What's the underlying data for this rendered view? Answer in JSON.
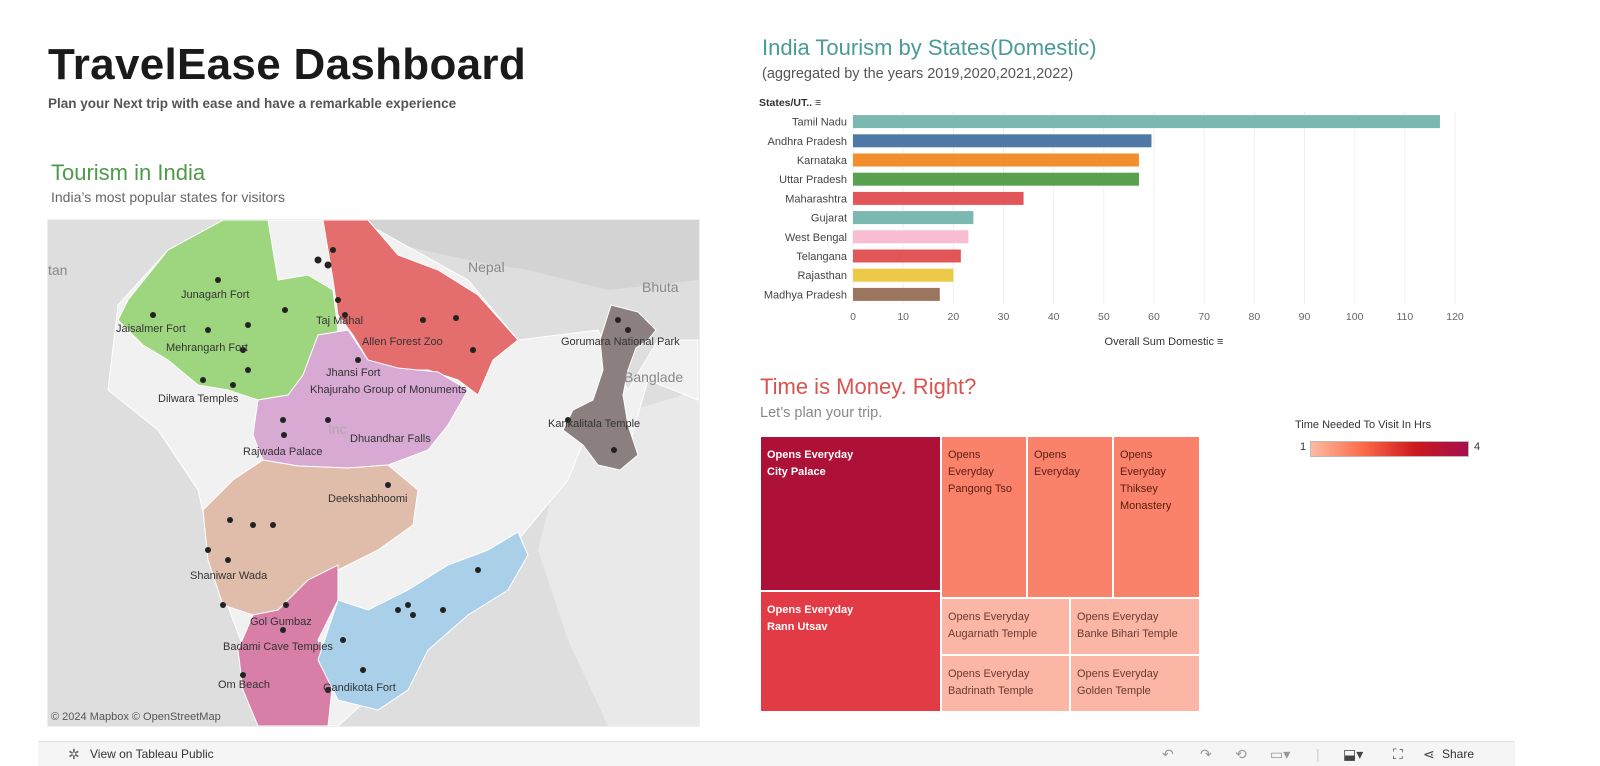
{
  "dashboard": {
    "title": "TravelEase Dashboard",
    "subtitle": "Plan your Next trip with ease and have a remarkable experience"
  },
  "map": {
    "title": "Tourism in India",
    "subtitle": "India’s most popular states for visitors",
    "attribution": "© 2024 Mapbox  © OpenStreetMap",
    "labels": {
      "tan": "tan",
      "nepal": "Nepal",
      "bhutan": "Bhuta",
      "bangladesh": "Banglade",
      "india": "Inc",
      "junagarh": "Junagarh Fort",
      "jaisalmer": "Jaisalmer Fort",
      "mehrangarh": "Mehrangarh Fort",
      "dilwara": "Dilwara Temples",
      "tajmahal": "Taj Mahal",
      "allen": "Allen Forest Zoo",
      "jhansi": "Jhansi Fort",
      "khajuraho": "Khajuraho Group of Monuments",
      "rajwada": "Rajwada Palace",
      "dhuandhar": "Dhuandhar Falls",
      "deekshabhoomi": "Deekshabhoomi",
      "shaniwar": "Shaniwar Wada",
      "golgumbaz": "Gol Gumbaz",
      "badami": "Badami Cave Temples",
      "ombeach": "Om Beach",
      "gandikota": "Gandikota Fort",
      "gorumara": "Gorumara National Park",
      "kankalitala": "Kankalitala Temple"
    },
    "colors": {
      "rajasthan": "#9ed67f",
      "uttar_pradesh": "#e46d6d",
      "madhya_pradesh": "#d7a9d3",
      "maharashtra": "#dfbdaa",
      "karnataka": "#d77fa6",
      "andhra_pradesh": "#a9cfe9",
      "west_bengal": "#8b7f7f",
      "background_land": "#dcdcdc",
      "other_india": "#efefef"
    }
  },
  "bar_chart": {
    "title": "India Tourism by States(Domestic)",
    "subtitle": "(aggregated by the years 2019,2020,2021,2022)"
  },
  "treemap": {
    "title": "Time is Money. Right?",
    "subtitle": "Let’s plan your trip.",
    "legend_title": "Time Needed To Visit In Hrs",
    "legend_min": "1",
    "legend_max": "4",
    "cells": [
      {
        "line1": "Opens Everyday",
        "line2": "City Palace",
        "color": "#ad1137",
        "text_color": "#ffffff"
      },
      {
        "line1": "Opens Everyday",
        "line2": "Rann Utsav",
        "color": "#e33b45",
        "text_color": "#ffffff"
      },
      {
        "line1": "Opens",
        "line2": "Everyday",
        "line3": "Pangong Tso",
        "color": "#fb826a",
        "text_color": "#5a1d10"
      },
      {
        "line1": "Opens",
        "line2": "Everyday",
        "color": "#fb826a",
        "text_color": "#5a1d10"
      },
      {
        "line1": "Opens",
        "line2": "Everyday",
        "line3": "Thiksey",
        "line4": "Monastery",
        "color": "#fb826a",
        "text_color": "#5a1d10"
      },
      {
        "line1": "Opens Everyday",
        "line2": "Augarnath Temple",
        "color": "#fcb6a6",
        "text_color": "#6b3a30"
      },
      {
        "line1": "Opens Everyday",
        "line2": "Banke Bihari Temple",
        "color": "#fcb6a6",
        "text_color": "#6b3a30"
      },
      {
        "line1": "Opens Everyday",
        "line2": "Badrinath Temple",
        "color": "#fcb6a6",
        "text_color": "#6b3a30"
      },
      {
        "line1": "Opens Everyday",
        "line2": "Golden Temple",
        "color": "#fcb6a6",
        "text_color": "#6b3a30"
      }
    ]
  },
  "footer": {
    "view_label": "View on Tableau Public",
    "share_label": "Share"
  },
  "chart_data": [
    {
      "type": "bar",
      "orientation": "horizontal",
      "title": "India Tourism by States(Domestic)",
      "subtitle": "(aggregated by the years 2019,2020,2021,2022)",
      "ylabel": "States/UT..",
      "xlabel": "Overall Sum Domestic",
      "categories": [
        "Tamil Nadu",
        "Andhra Pradesh",
        "Karnataka",
        "Uttar Pradesh",
        "Maharashtra",
        "Gujarat",
        "West Bengal",
        "Telangana",
        "Rajasthan",
        "Madhya Pradesh"
      ],
      "values": [
        117,
        59.5,
        57,
        57,
        34,
        24,
        23,
        21.5,
        20,
        17.3
      ],
      "colors": [
        "#7ab8b0",
        "#4e79a7",
        "#f28e2b",
        "#59a14f",
        "#e15759",
        "#7ab8b0",
        "#f9bdd3",
        "#e15759",
        "#edc948",
        "#9c755f"
      ],
      "xlim": [
        0,
        120
      ],
      "xticks": [
        0,
        10,
        20,
        30,
        40,
        50,
        60,
        70,
        80,
        90,
        100,
        110,
        120
      ],
      "grid": true
    },
    {
      "type": "treemap",
      "title": "Time is Money. Right?",
      "subtitle": "Let’s plan your trip.",
      "legend": {
        "title": "Time Needed To Visit In Hrs",
        "min": 1,
        "max": 4
      },
      "items": [
        {
          "name": "City Palace",
          "label": "Opens Everyday",
          "hours": 4
        },
        {
          "name": "Rann Utsav",
          "label": "Opens Everyday",
          "hours": 3
        },
        {
          "name": "Pangong Tso",
          "label": "Opens Everyday",
          "hours": 2
        },
        {
          "name": "",
          "label": "Opens Everyday",
          "hours": 2
        },
        {
          "name": "Thiksey Monastery",
          "label": "Opens Everyday",
          "hours": 2
        },
        {
          "name": "Augarnath Temple",
          "label": "Opens Everyday",
          "hours": 1
        },
        {
          "name": "Banke Bihari Temple",
          "label": "Opens Everyday",
          "hours": 1
        },
        {
          "name": "Badrinath Temple",
          "label": "Opens Everyday",
          "hours": 1
        },
        {
          "name": "Golden Temple",
          "label": "Opens Everyday",
          "hours": 1
        }
      ]
    }
  ]
}
